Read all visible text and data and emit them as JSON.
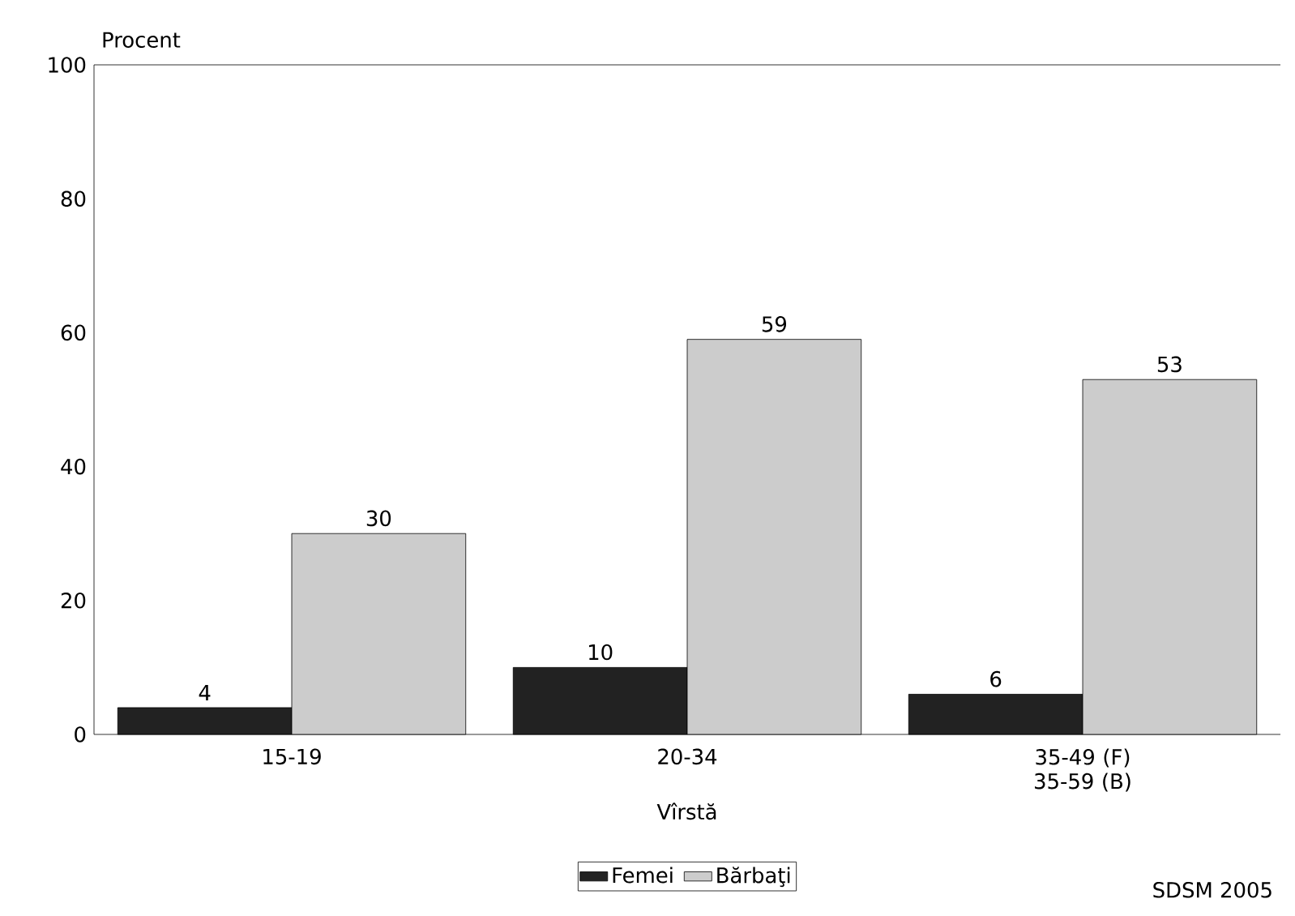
{
  "chart_data": {
    "type": "bar",
    "ylabel": "Procent",
    "xlabel": "Vîrstă",
    "categories": [
      "15-19",
      "20-34",
      "35-49 (F) 35-59 (B)"
    ],
    "series": [
      {
        "name": "Femei",
        "color": "#222222",
        "values": [
          4,
          10,
          6
        ]
      },
      {
        "name": "Bărbaţi",
        "color": "#cccccc",
        "values": [
          30,
          59,
          53
        ]
      }
    ],
    "ylim": [
      0,
      100
    ],
    "yticks": [
      0,
      20,
      40,
      60,
      80,
      100
    ],
    "data_labels": true,
    "legend": "bottom",
    "annotations": [
      "SDSM 2005"
    ]
  }
}
